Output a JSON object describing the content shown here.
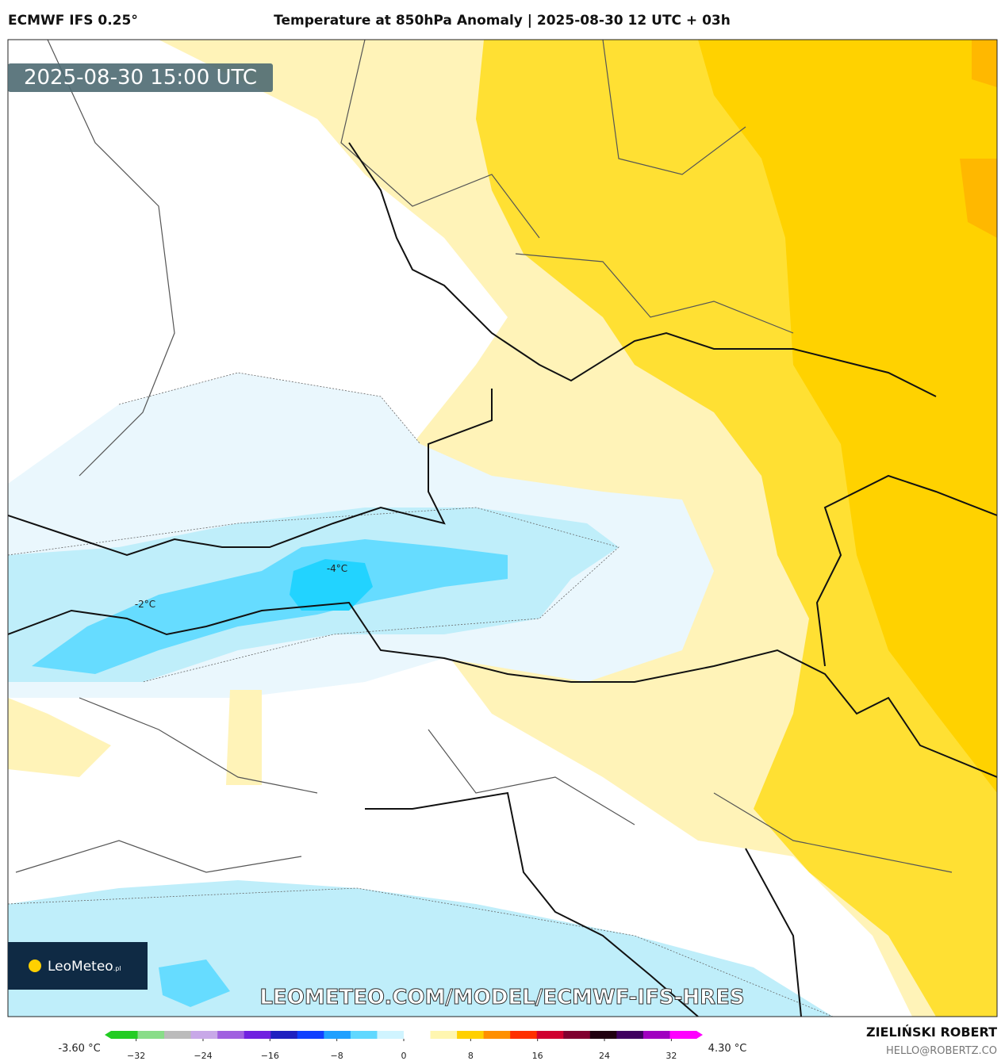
{
  "header": {
    "model": "ECMWF IFS 0.25°",
    "title": "Temperature at 850hPa Anomaly | 2025-08-30 12 UTC + 03h"
  },
  "map": {
    "timestamp": "2025-08-30 15:00 UTC",
    "contour_labels": [
      "-4°C",
      "-2°C"
    ],
    "logo": "LeoMeteo",
    "logo_suffix": ".pl",
    "watermark": "LEOMETEO.COM/MODEL/ECMWF-IFS-HRES"
  },
  "colorbar": {
    "min_label": "-3.60 °C",
    "max_label": "4.30 °C",
    "range": [
      -35,
      35
    ],
    "ticks": [
      {
        "value": -32,
        "label": "−32"
      },
      {
        "value": -24,
        "label": "−24"
      },
      {
        "value": -16,
        "label": "−16"
      },
      {
        "value": -8,
        "label": "−8"
      },
      0,
      8,
      16,
      24,
      32
    ],
    "colors": [
      "#22cc22",
      "#88dd88",
      "#bbbbbb",
      "#c8a8e8",
      "#a060e0",
      "#7020e0",
      "#2020c0",
      "#1040ff",
      "#20a0ff",
      "#60d8ff",
      "#d0f4ff",
      "#ffffff",
      "#fff6b0",
      "#ffd000",
      "#ff9000",
      "#ff3000",
      "#d00030",
      "#800030",
      "#200010",
      "#400060",
      "#a000c0",
      "#ff00ff"
    ]
  },
  "footer": {
    "author": "ZIELIŃSKI ROBERT",
    "email": "HELLO@ROBERTZ.CO"
  }
}
